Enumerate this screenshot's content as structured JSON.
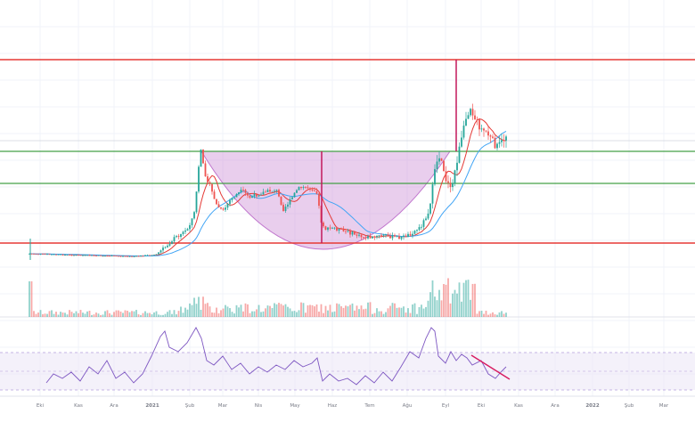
{
  "window": {
    "background": "#ffffff"
  },
  "x_axis": {
    "labels": [
      "Eki",
      "Kas",
      "Ara",
      "2021",
      "Şub",
      "Mar",
      "Nis",
      "May",
      "Haz",
      "Tem",
      "Ağu",
      "Eyl",
      "Eki",
      "Kas",
      "Ara",
      "2022",
      "Şub",
      "Mar"
    ]
  },
  "colors": {
    "candle_up": "#26a69a",
    "candle_down": "#ef5350",
    "ma_fast": "#e53935",
    "ma_slow": "#42a5f5",
    "cup_fill": "#ce93d8",
    "cup_stroke": "#ab47bc",
    "hline_red": "#e53935",
    "hline_green": "#43a047",
    "vline": "#c2185b",
    "rsi_line": "#7e57c2",
    "rsi_band": "#ede7f6",
    "trendline": "#d81b60",
    "grid": "#f0f3fa"
  },
  "chart_data": {
    "type": "candlestick",
    "panels": [
      "price",
      "volume",
      "rsi"
    ],
    "price": {
      "horizontal_levels": [
        {
          "label": "resistance-top",
          "color": "red"
        },
        {
          "label": "cup-rim",
          "color": "green"
        },
        {
          "label": "mid-support",
          "color": "green"
        },
        {
          "label": "base-support",
          "color": "red"
        }
      ],
      "moving_averages": [
        "red",
        "blue"
      ],
      "annotations": [
        "cup-shape",
        "vertical-measure-cup",
        "vertical-measure-breakout"
      ]
    },
    "rsi": {
      "band_levels": [
        70,
        30
      ],
      "trendline": "descending"
    }
  }
}
